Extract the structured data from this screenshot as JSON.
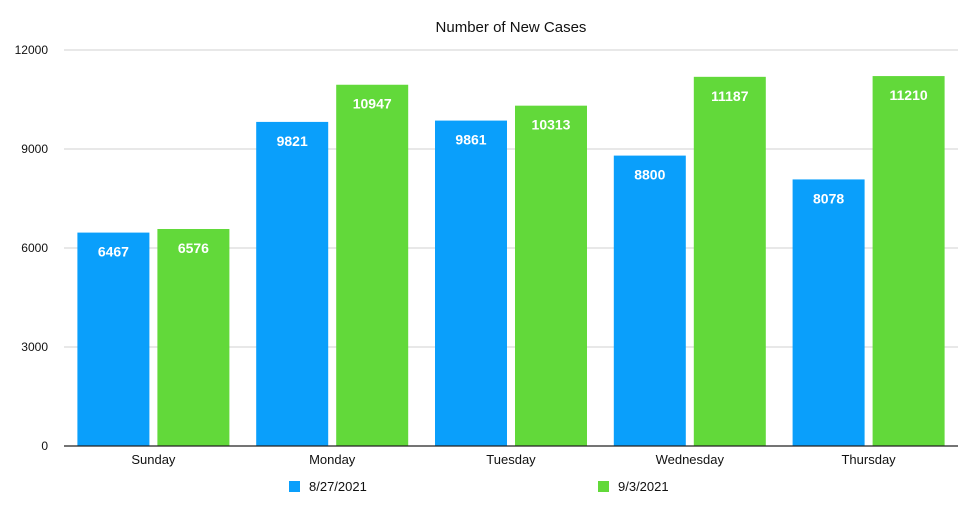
{
  "chart_data": {
    "type": "bar",
    "title": "Number of New Cases",
    "categories": [
      "Sunday",
      "Monday",
      "Tuesday",
      "Wednesday",
      "Thursday"
    ],
    "series": [
      {
        "name": "8/27/2021",
        "color": "#0a9ffb",
        "values": [
          6467,
          9821,
          9861,
          8800,
          8078
        ]
      },
      {
        "name": "9/3/2021",
        "color": "#62d93a",
        "values": [
          6576,
          10947,
          10313,
          11187,
          11210
        ]
      }
    ],
    "ylim": [
      0,
      12000
    ],
    "yticks": [
      0,
      3000,
      6000,
      9000,
      12000
    ],
    "grid": true,
    "legend": "bottom"
  }
}
